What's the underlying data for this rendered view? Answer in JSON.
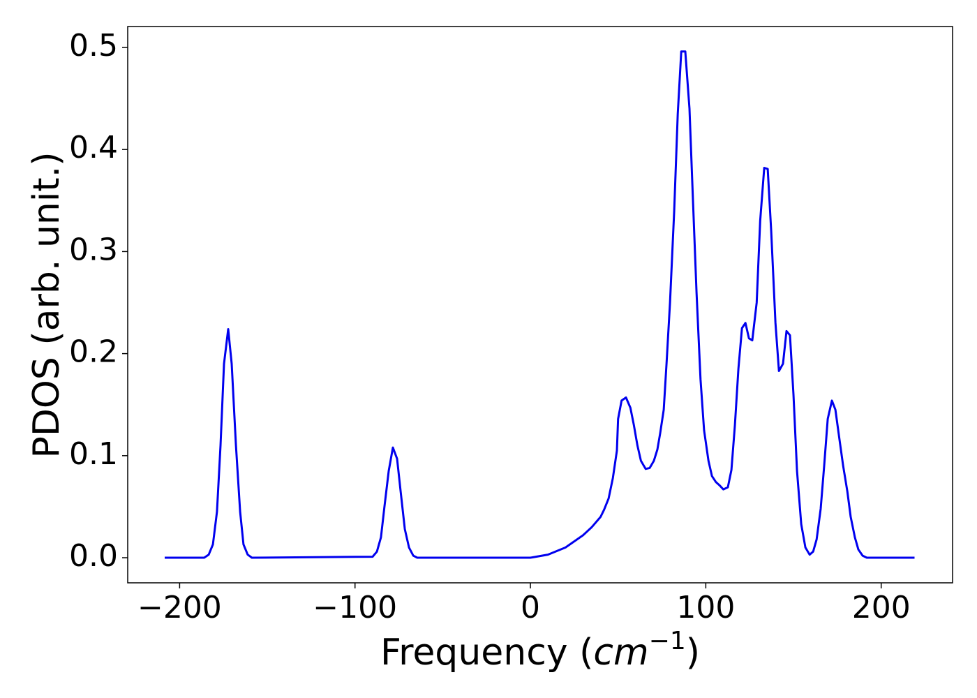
{
  "chart_data": {
    "type": "line",
    "xlabel": [
      "Frequency (",
      "cm",
      "−1",
      ")"
    ],
    "ylabel": "PDOS (arb. unit.)",
    "color": "#0000ee",
    "x": [
      -208.5,
      -186,
      -183.4,
      -181,
      -178.7,
      -176.7,
      -174.7,
      -172.3,
      -170.3,
      -167.9,
      -165.5,
      -163.6,
      -161.2,
      -158.8,
      -90,
      -87.5,
      -85.2,
      -83.2,
      -80.8,
      -78.4,
      -76,
      -74,
      -71.6,
      -69.2,
      -66.8,
      -64.5,
      0,
      10,
      20,
      30,
      35,
      40,
      42,
      44.6,
      47,
      49.3,
      50,
      52,
      54.5,
      57,
      59,
      61,
      63,
      65.7,
      68,
      70.4,
      72.4,
      74,
      76,
      77.6,
      79.6,
      82,
      84,
      86,
      88.3,
      90.7,
      92.7,
      94.7,
      97,
      99,
      101.5,
      103.5,
      105.8,
      107.8,
      110,
      112.6,
      114.6,
      116.6,
      118.6,
      120.6,
      122.6,
      124.6,
      126.5,
      129,
      131,
      133.3,
      135.3,
      137.3,
      139.7,
      141.7,
      144,
      146,
      148,
      150,
      152,
      154.4,
      156.8,
      159.2,
      161.2,
      163.2,
      165.5,
      167.5,
      169.5,
      171.9,
      173.9,
      175.9,
      178.3,
      180.7,
      182.6,
      185,
      187,
      189.4,
      191.8,
      219
    ],
    "values": [
      0,
      0,
      0.003,
      0.013,
      0.045,
      0.11,
      0.19,
      0.224,
      0.19,
      0.11,
      0.045,
      0.013,
      0.003,
      0,
      0.001,
      0.006,
      0.02,
      0.05,
      0.085,
      0.108,
      0.097,
      0.065,
      0.028,
      0.01,
      0.002,
      0,
      0,
      0.003,
      0.01,
      0.022,
      0.03,
      0.04,
      0.047,
      0.058,
      0.078,
      0.105,
      0.136,
      0.154,
      0.157,
      0.147,
      0.13,
      0.11,
      0.095,
      0.087,
      0.088,
      0.095,
      0.106,
      0.122,
      0.145,
      0.19,
      0.25,
      0.34,
      0.435,
      0.496,
      0.496,
      0.44,
      0.35,
      0.26,
      0.175,
      0.125,
      0.095,
      0.08,
      0.074,
      0.071,
      0.067,
      0.069,
      0.086,
      0.13,
      0.185,
      0.225,
      0.23,
      0.215,
      0.213,
      0.25,
      0.33,
      0.382,
      0.381,
      0.32,
      0.23,
      0.183,
      0.19,
      0.222,
      0.218,
      0.16,
      0.085,
      0.033,
      0.01,
      0.003,
      0.006,
      0.018,
      0.048,
      0.09,
      0.136,
      0.154,
      0.145,
      0.12,
      0.09,
      0.065,
      0.04,
      0.02,
      0.008,
      0.002,
      0,
      0
    ],
    "xlim": [
      -229.6,
      240.7
    ],
    "xticks": [
      {
        "value": -200,
        "label": "−200"
      },
      {
        "value": -100,
        "label": "−100"
      },
      0,
      100,
      200
    ],
    "ylim": [
      -0.0246,
      0.5205
    ],
    "yticks": [
      {
        "value": 0,
        "label": "0.0"
      },
      0.1,
      0.2,
      0.3,
      0.4,
      0.5
    ],
    "grid": false
  }
}
